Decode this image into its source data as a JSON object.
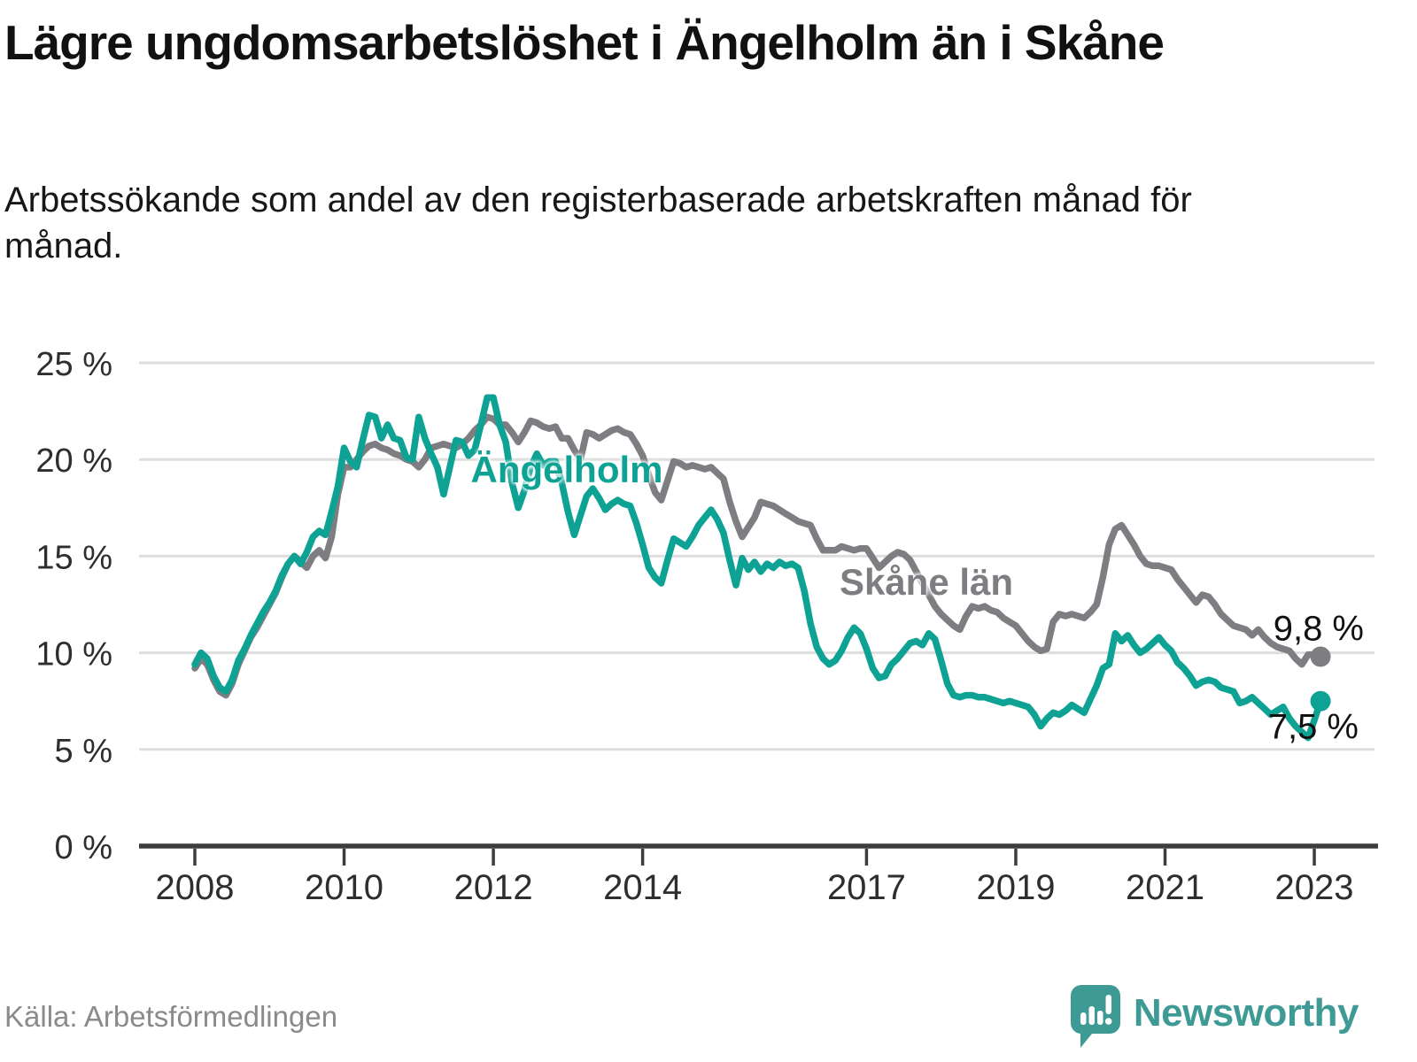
{
  "title": "Lägre ungdomsarbetslöshet i Ängelholm än i Skåne",
  "subtitle": "Arbetssökande som andel av den registerbaserade arbetskraften månad för månad.",
  "source": "Källa: Arbetsförmedlingen",
  "branding": {
    "name": "Newsworthy",
    "color": "#3d9a94",
    "icon": "bar-chart-speech-bubble-icon"
  },
  "chart_data": {
    "type": "line",
    "title": "Lägre ungdomsarbetslöshet i Ängelholm än i Skåne",
    "ylabel": "",
    "xlabel": "",
    "unit": "%",
    "ylim": [
      0,
      25
    ],
    "grid": "horizontal",
    "frequency": "monthly",
    "start": {
      "year": 2008,
      "month": 1
    },
    "end": {
      "year": 2023,
      "month": 2
    },
    "x_axis": {
      "tick_years": [
        2008,
        2010,
        2012,
        2014,
        2017,
        2019,
        2021,
        2023
      ],
      "tick_labels": [
        "2008",
        "2010",
        "2012",
        "2014",
        "2017",
        "2019",
        "2021",
        "2023"
      ]
    },
    "y_axis": {
      "tick_values": [
        0,
        5,
        10,
        15,
        20,
        25
      ],
      "tick_labels": [
        "0 %",
        "5 %",
        "10 %",
        "15 %",
        "20 %",
        "25 %"
      ]
    },
    "series": [
      {
        "name": "Skåne län",
        "color": "#7e7e82",
        "end_label": "9,8 %",
        "end_value": 9.8,
        "values": [
          9.2,
          9.7,
          9.4,
          8.6,
          8.0,
          7.8,
          8.4,
          9.4,
          10.1,
          10.8,
          11.3,
          11.9,
          12.5,
          13.1,
          13.9,
          14.6,
          15.0,
          14.7,
          14.4,
          15.0,
          15.3,
          14.9,
          16.0,
          18.2,
          19.6,
          19.6,
          20.0,
          20.4,
          20.7,
          20.8,
          20.6,
          20.5,
          20.3,
          20.2,
          20.0,
          19.9,
          19.6,
          20.0,
          20.6,
          20.7,
          20.8,
          20.7,
          20.6,
          20.8,
          21.1,
          21.5,
          21.8,
          22.2,
          22.1,
          21.8,
          21.8,
          21.4,
          20.9,
          21.4,
          22.0,
          21.9,
          21.7,
          21.6,
          21.7,
          21.1,
          21.1,
          20.5,
          20.0,
          21.4,
          21.3,
          21.1,
          21.3,
          21.5,
          21.6,
          21.4,
          21.3,
          20.8,
          20.2,
          19.2,
          18.3,
          17.9,
          18.9,
          19.9,
          19.8,
          19.6,
          19.7,
          19.6,
          19.5,
          19.6,
          19.3,
          19.0,
          17.8,
          16.8,
          16.0,
          16.5,
          17.0,
          17.8,
          17.7,
          17.6,
          17.4,
          17.2,
          17.0,
          16.8,
          16.7,
          16.6,
          15.9,
          15.3,
          15.3,
          15.3,
          15.5,
          15.4,
          15.3,
          15.4,
          15.4,
          14.9,
          14.4,
          14.7,
          15.0,
          15.2,
          15.1,
          14.8,
          14.2,
          13.6,
          13.0,
          12.4,
          12.0,
          11.7,
          11.4,
          11.2,
          11.9,
          12.4,
          12.3,
          12.4,
          12.2,
          12.1,
          11.8,
          11.6,
          11.4,
          11.0,
          10.6,
          10.3,
          10.1,
          10.2,
          11.6,
          12.0,
          11.9,
          12.0,
          11.9,
          11.8,
          12.1,
          12.5,
          13.9,
          15.6,
          16.4,
          16.6,
          16.1,
          15.6,
          15.0,
          14.6,
          14.5,
          14.5,
          14.4,
          14.3,
          13.8,
          13.4,
          13.0,
          12.6,
          13.0,
          12.9,
          12.5,
          12.0,
          11.7,
          11.4,
          11.3,
          11.2,
          10.9,
          11.2,
          10.8,
          10.5,
          10.3,
          10.2,
          10.1,
          9.7,
          9.4,
          9.9,
          9.9,
          9.8
        ]
      },
      {
        "name": "Ängelholm",
        "color": "#0da294",
        "end_label": "7,5 %",
        "end_value": 7.5,
        "values": [
          9.4,
          10.0,
          9.7,
          8.8,
          8.2,
          8.0,
          8.6,
          9.6,
          10.2,
          10.9,
          11.5,
          12.1,
          12.6,
          13.2,
          14.0,
          14.6,
          15.0,
          14.6,
          15.2,
          16.0,
          16.3,
          16.1,
          17.3,
          18.6,
          20.6,
          19.9,
          19.6,
          21.0,
          22.3,
          22.2,
          21.1,
          21.8,
          21.1,
          21.0,
          20.1,
          20.0,
          22.2,
          21.1,
          20.3,
          19.6,
          18.2,
          19.6,
          21.0,
          20.9,
          20.2,
          20.5,
          21.8,
          23.2,
          23.2,
          21.8,
          20.9,
          18.8,
          17.5,
          18.4,
          19.6,
          20.3,
          19.7,
          19.9,
          19.9,
          18.8,
          17.3,
          16.1,
          17.1,
          18.1,
          18.5,
          18.0,
          17.4,
          17.7,
          17.9,
          17.7,
          17.6,
          16.7,
          15.6,
          14.4,
          13.9,
          13.6,
          14.8,
          15.9,
          15.7,
          15.5,
          16.0,
          16.6,
          17.0,
          17.4,
          16.9,
          16.2,
          14.8,
          13.5,
          14.9,
          14.3,
          14.7,
          14.2,
          14.6,
          14.4,
          14.7,
          14.5,
          14.6,
          14.4,
          13.2,
          11.5,
          10.3,
          9.7,
          9.4,
          9.6,
          10.1,
          10.8,
          11.3,
          11.0,
          10.2,
          9.2,
          8.7,
          8.8,
          9.4,
          9.7,
          10.1,
          10.5,
          10.6,
          10.4,
          11.0,
          10.7,
          9.6,
          8.4,
          7.8,
          7.7,
          7.8,
          7.8,
          7.7,
          7.7,
          7.6,
          7.5,
          7.4,
          7.5,
          7.4,
          7.3,
          7.2,
          6.8,
          6.2,
          6.6,
          6.9,
          6.8,
          7.0,
          7.3,
          7.1,
          6.9,
          7.6,
          8.3,
          9.2,
          9.4,
          11.0,
          10.6,
          10.9,
          10.4,
          10.0,
          10.2,
          10.5,
          10.8,
          10.4,
          10.1,
          9.5,
          9.2,
          8.8,
          8.3,
          8.5,
          8.6,
          8.5,
          8.2,
          8.1,
          8.0,
          7.4,
          7.5,
          7.7,
          7.4,
          7.1,
          6.8,
          7.0,
          7.2,
          6.6,
          6.2,
          5.9,
          5.6,
          6.5,
          7.5
        ]
      }
    ],
    "legend_position": "inline-labels",
    "colors": {
      "grid": "#dedede",
      "axis": "#3c3c3c",
      "tick_text": "#2e2e2e"
    }
  }
}
